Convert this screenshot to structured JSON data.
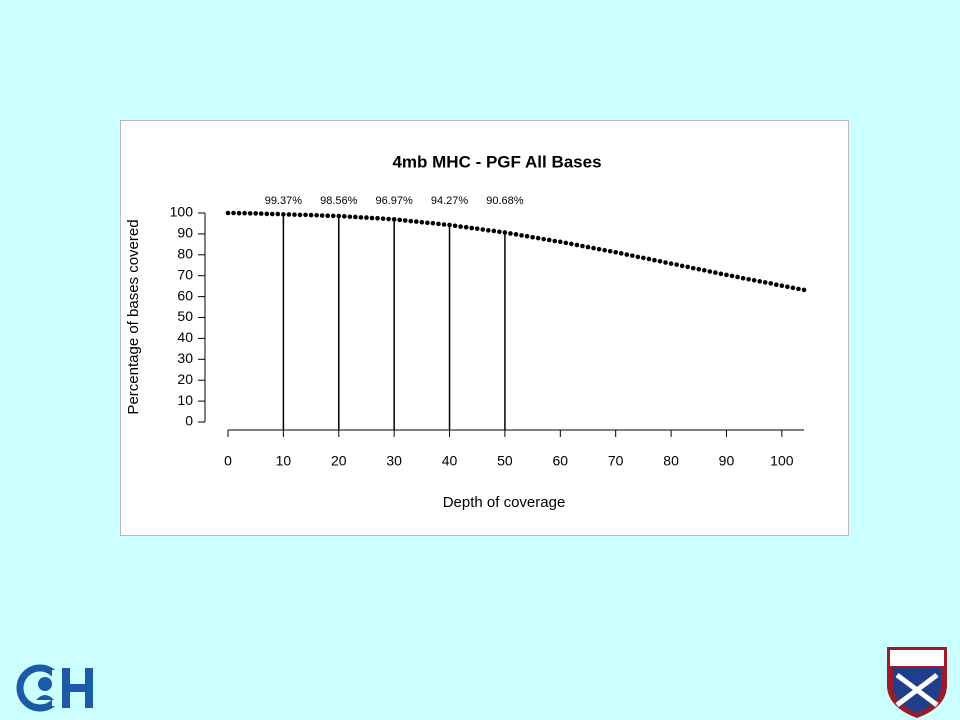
{
  "chart_data": {
    "type": "scatter",
    "title": "4mb MHC - PGF All Bases",
    "xlabel": "Depth of coverage",
    "ylabel": "Percentage of bases covered",
    "xlim": [
      0,
      104
    ],
    "ylim": [
      0,
      100
    ],
    "xticks": [
      0,
      10,
      20,
      30,
      40,
      50,
      60,
      70,
      80,
      90,
      100
    ],
    "yticks": [
      0,
      10,
      20,
      30,
      40,
      50,
      60,
      70,
      80,
      90,
      100
    ],
    "color": "#000000",
    "x": [
      0,
      1,
      2,
      3,
      4,
      5,
      6,
      7,
      8,
      9,
      10,
      11,
      12,
      13,
      14,
      15,
      16,
      17,
      18,
      19,
      20,
      21,
      22,
      23,
      24,
      25,
      26,
      27,
      28,
      29,
      30,
      31,
      32,
      33,
      34,
      35,
      36,
      37,
      38,
      39,
      40,
      41,
      42,
      43,
      44,
      45,
      46,
      47,
      48,
      49,
      50,
      51,
      52,
      53,
      54,
      55,
      56,
      57,
      58,
      59,
      60,
      61,
      62,
      63,
      64,
      65,
      66,
      67,
      68,
      69,
      70,
      71,
      72,
      73,
      74,
      75,
      76,
      77,
      78,
      79,
      80,
      81,
      82,
      83,
      84,
      85,
      86,
      87,
      88,
      89,
      90,
      91,
      92,
      93,
      94,
      95,
      96,
      97,
      98,
      99,
      100,
      101,
      102,
      103,
      104
    ],
    "values": [
      100,
      100,
      99.9,
      99.9,
      99.8,
      99.8,
      99.7,
      99.6,
      99.5,
      99.5,
      99.37,
      99.3,
      99.2,
      99.1,
      99.1,
      99.0,
      98.9,
      98.8,
      98.7,
      98.6,
      98.56,
      98.4,
      98.2,
      98.1,
      97.9,
      97.8,
      97.6,
      97.5,
      97.3,
      97.1,
      96.97,
      96.7,
      96.4,
      96.1,
      95.9,
      95.6,
      95.3,
      95.1,
      94.8,
      94.5,
      94.27,
      93.9,
      93.5,
      93.2,
      92.8,
      92.5,
      92.1,
      91.7,
      91.4,
      91.0,
      90.68,
      90.2,
      89.8,
      89.3,
      88.9,
      88.4,
      88.0,
      87.5,
      87.1,
      86.6,
      86.2,
      85.7,
      85.2,
      84.7,
      84.2,
      83.7,
      83.2,
      82.7,
      82.2,
      81.7,
      81.2,
      80.7,
      80.1,
      79.6,
      79.0,
      78.5,
      78.0,
      77.4,
      76.9,
      76.3,
      75.8,
      75.3,
      74.7,
      74.2,
      73.6,
      73.1,
      72.6,
      72.0,
      71.5,
      70.9,
      70.4,
      69.9,
      69.4,
      68.8,
      68.3,
      67.8,
      67.3,
      66.8,
      66.3,
      65.7,
      65.2,
      64.7,
      64.2,
      63.7,
      63.2
    ],
    "markers": [
      {
        "x": 10,
        "y": 99.37,
        "label": "99.37%"
      },
      {
        "x": 20,
        "y": 98.56,
        "label": "98.56%"
      },
      {
        "x": 30,
        "y": 96.97,
        "label": "96.97%"
      },
      {
        "x": 40,
        "y": 94.27,
        "label": "94.27%"
      },
      {
        "x": 50,
        "y": 90.68,
        "label": "90.68%"
      }
    ]
  }
}
